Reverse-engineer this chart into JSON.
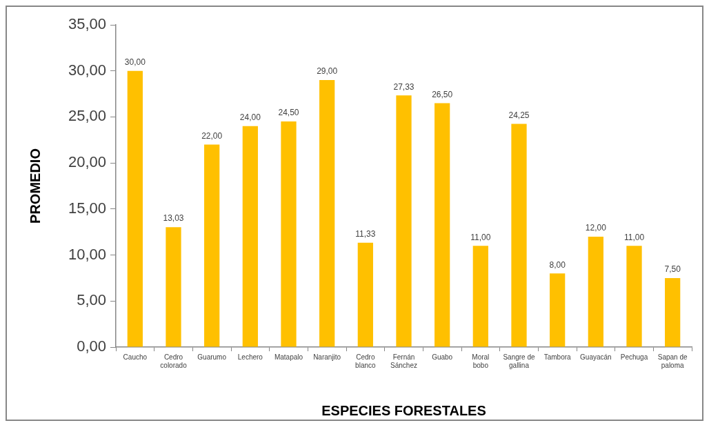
{
  "chart_data": {
    "type": "bar",
    "xlabel": "ESPECIES FORESTALES",
    "ylabel": "PROMEDIO",
    "categories": [
      "Caucho",
      "Cedro colorado",
      "Guarumo",
      "Lechero",
      "Matapalo",
      "Naranjito",
      "Cedro blanco",
      "Fernán Sánchez",
      "Guabo",
      "Moral bobo",
      "Sangre de gallina",
      "Tambora",
      "Guayacán",
      "Pechuga",
      "Sapan de paloma"
    ],
    "values": [
      30,
      13.03,
      22,
      24,
      24.5,
      29,
      11.33,
      27.33,
      26.5,
      11,
      24.25,
      8,
      12,
      11,
      7.5
    ],
    "value_labels": [
      "30,00",
      "13,03",
      "22,00",
      "24,00",
      "24,50",
      "29,00",
      "11,33",
      "27,33",
      "26,50",
      "11,00",
      "24,25",
      "8,00",
      "12,00",
      "11,00",
      "7,50"
    ],
    "color": "#ffc000",
    "ylim": [
      0,
      35
    ],
    "yticks": [
      {
        "value": 0,
        "label": "0,00"
      },
      {
        "value": 5,
        "label": "5,00"
      },
      {
        "value": 10,
        "label": "10,00"
      },
      {
        "value": 15,
        "label": "15,00"
      },
      {
        "value": 20,
        "label": "20,00"
      },
      {
        "value": 25,
        "label": "25,00"
      },
      {
        "value": 30,
        "label": "30,00"
      },
      {
        "value": 35,
        "label": "35,00"
      }
    ]
  }
}
